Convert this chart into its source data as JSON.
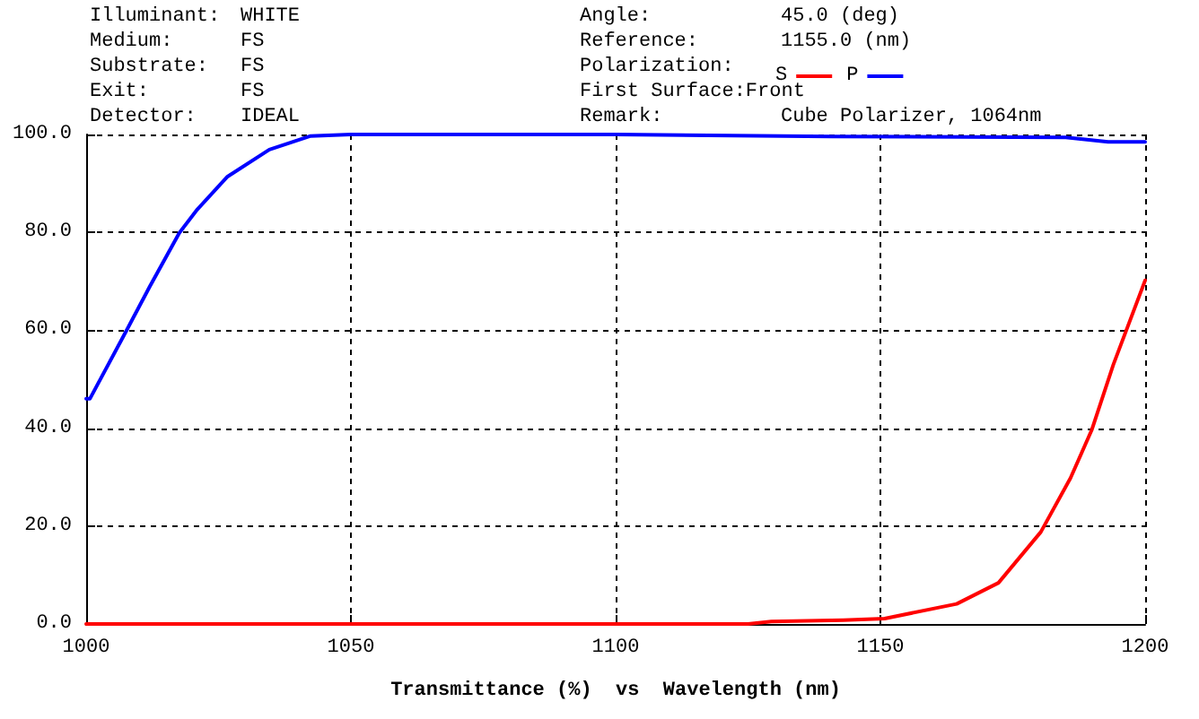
{
  "chart_data": {
    "type": "line",
    "xlabel": "Transmittance (%)  vs  Wavelength (nm)",
    "annotations": [
      "Illuminant: WHITE",
      "Medium: FS",
      "Substrate: FS",
      "Exit: FS",
      "Detector: IDEAL",
      "Angle: 45.0 (deg)",
      "Reference: 1155.0 (nm)",
      "Polarization:",
      "First Surface:Front",
      "Remark: Cube Polarizer, 1064nm"
    ],
    "series": [
      {
        "name": "S",
        "color": "#ff0000",
        "x": [
          1000,
          1050,
          1100,
          1125,
          1129.4,
          1143,
          1150.8,
          1164.4,
          1172.3,
          1180.3,
          1185.9,
          1189.9,
          1194,
          1200
        ],
        "values": [
          0,
          0,
          0,
          0,
          0.5,
          0.8,
          1.1,
          4.1,
          8.4,
          18.8,
          29.8,
          39.6,
          53,
          70.2
        ]
      },
      {
        "name": "P",
        "color": "#0000ff",
        "x": [
          1000,
          1000.7,
          1007.5,
          1012,
          1017.6,
          1021,
          1026.7,
          1034.6,
          1042.4,
          1050,
          1100,
          1140.7,
          1185,
          1193,
          1200
        ],
        "values": [
          46,
          46,
          59.7,
          68.9,
          79.9,
          84.7,
          91.4,
          96.9,
          99.7,
          100,
          100,
          99.6,
          99.4,
          98.5,
          98.5
        ]
      }
    ],
    "xlim": [
      1000,
      1200
    ],
    "xticks": [
      1000,
      1050,
      1100,
      1150,
      1200
    ],
    "ylim": [
      0,
      100
    ],
    "yticks": [
      {
        "value": 0,
        "label": "0.0"
      },
      {
        "value": 20,
        "label": "20.0"
      },
      {
        "value": 40,
        "label": "40.0"
      },
      {
        "value": 60,
        "label": "60.0"
      },
      {
        "value": 80,
        "label": "80.0"
      },
      {
        "value": 100,
        "label": "100.0"
      }
    ],
    "grid": true,
    "legend": "top",
    "marker": "none",
    "line_style": "solid"
  }
}
